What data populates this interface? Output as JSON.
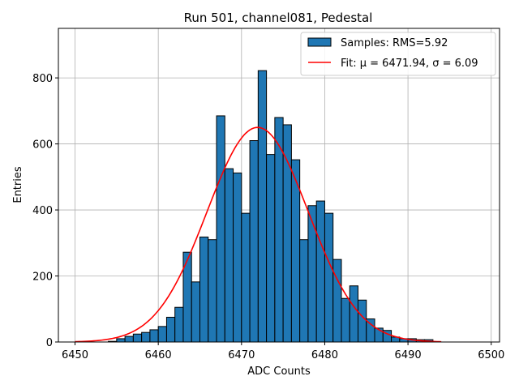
{
  "chart_data": {
    "type": "bar",
    "title": "Run 501, channel081, Pedestal",
    "xlabel": "ADC Counts",
    "ylabel": "Entries",
    "xlim": [
      6448,
      6501
    ],
    "ylim": [
      0,
      950
    ],
    "grid": true,
    "legend_position": "top-right",
    "x_ticks": [
      6450,
      6460,
      6470,
      6480,
      6490,
      6500
    ],
    "y_ticks": [
      0,
      200,
      400,
      600,
      800
    ],
    "histogram": {
      "name": "Samples: RMS=5.92",
      "color": "#1f77b4",
      "edge_color": "#000000",
      "bins": [
        {
          "x": 6454,
          "value": 2
        },
        {
          "x": 6455,
          "value": 10
        },
        {
          "x": 6456,
          "value": 17
        },
        {
          "x": 6457,
          "value": 24
        },
        {
          "x": 6458,
          "value": 29
        },
        {
          "x": 6459,
          "value": 37
        },
        {
          "x": 6460,
          "value": 47
        },
        {
          "x": 6461,
          "value": 75
        },
        {
          "x": 6462,
          "value": 105
        },
        {
          "x": 6463,
          "value": 272
        },
        {
          "x": 6464,
          "value": 182
        },
        {
          "x": 6465,
          "value": 318
        },
        {
          "x": 6466,
          "value": 310
        },
        {
          "x": 6467,
          "value": 685
        },
        {
          "x": 6468,
          "value": 525
        },
        {
          "x": 6469,
          "value": 512
        },
        {
          "x": 6470,
          "value": 390
        },
        {
          "x": 6471,
          "value": 610
        },
        {
          "x": 6472,
          "value": 822
        },
        {
          "x": 6473,
          "value": 568
        },
        {
          "x": 6474,
          "value": 680
        },
        {
          "x": 6475,
          "value": 658
        },
        {
          "x": 6476,
          "value": 552
        },
        {
          "x": 6477,
          "value": 310
        },
        {
          "x": 6478,
          "value": 413
        },
        {
          "x": 6479,
          "value": 427
        },
        {
          "x": 6480,
          "value": 390
        },
        {
          "x": 6481,
          "value": 250
        },
        {
          "x": 6482,
          "value": 132
        },
        {
          "x": 6483,
          "value": 170
        },
        {
          "x": 6484,
          "value": 127
        },
        {
          "x": 6485,
          "value": 70
        },
        {
          "x": 6486,
          "value": 42
        },
        {
          "x": 6487,
          "value": 35
        },
        {
          "x": 6488,
          "value": 15
        },
        {
          "x": 6489,
          "value": 10
        },
        {
          "x": 6490,
          "value": 10
        },
        {
          "x": 6491,
          "value": 7
        },
        {
          "x": 6492,
          "value": 7
        }
      ]
    },
    "fit": {
      "name": "Fit: μ = 6471.94, σ = 6.09",
      "color": "#ff0000",
      "type": "gaussian",
      "amplitude": 650,
      "mu": 6471.94,
      "sigma": 6.09,
      "x_range": [
        6450,
        6494
      ]
    }
  }
}
